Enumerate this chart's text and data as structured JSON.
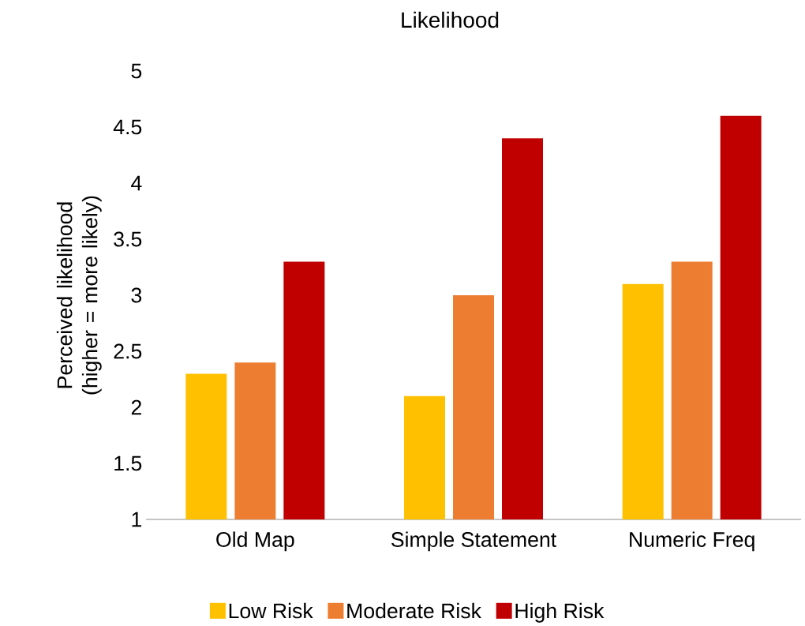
{
  "chart_data": {
    "type": "bar",
    "title": "Likelihood",
    "ylabel": "Perceived likelihood (higher = more likely)",
    "categories": [
      "Old Map",
      "Simple Statement",
      "Numeric Freq"
    ],
    "series": [
      {
        "name": "Low Risk",
        "color": "#ffc000",
        "values": [
          2.3,
          2.1,
          3.1
        ]
      },
      {
        "name": "Moderate Risk",
        "color": "#ed7d31",
        "values": [
          2.4,
          3.0,
          3.3
        ]
      },
      {
        "name": "High Risk",
        "color": "#c00000",
        "values": [
          3.3,
          4.4,
          4.6
        ]
      }
    ],
    "ylim": [
      1,
      5
    ],
    "yticks": [
      1,
      1.5,
      2,
      2.5,
      3,
      3.5,
      4,
      4.5,
      5
    ],
    "legend": "bottom"
  }
}
